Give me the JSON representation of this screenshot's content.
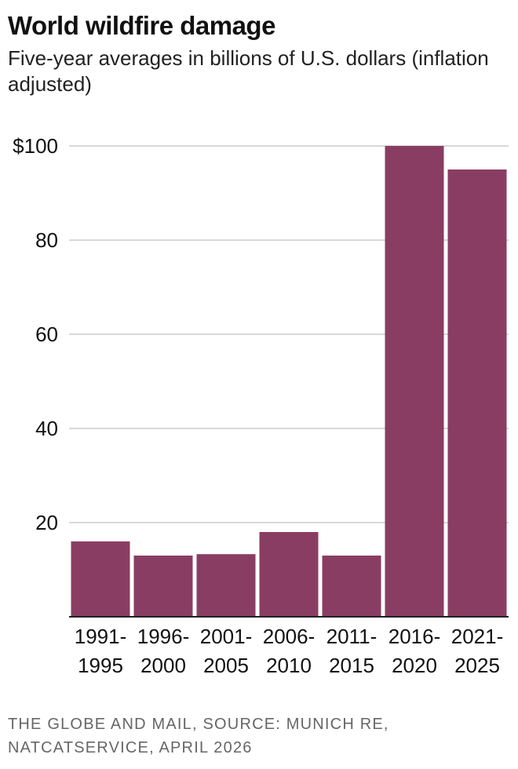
{
  "title": "World wildfire damage",
  "subtitle": "Five-year averages in billions of U.S. dollars (inflation adjusted)",
  "source": "THE GLOBE AND MAIL, SOURCE: MUNICH RE, NATCATSERVICE, APRIL 2026",
  "colors": {
    "bar": "#8a3d62",
    "grid": "#cccccc",
    "axis": "#222222",
    "tick_text": "#111111"
  },
  "chart_data": {
    "type": "bar",
    "title": "World wildfire damage",
    "subtitle": "Five-year averages in billions of U.S. dollars (inflation adjusted)",
    "xlabel": "",
    "ylabel": "",
    "ylim": [
      0,
      100
    ],
    "yticks": [
      20,
      40,
      60,
      80,
      100
    ],
    "ytick_labels": [
      "20",
      "40",
      "60",
      "80",
      "$100"
    ],
    "grid": true,
    "categories": [
      [
        "1991-",
        "1995"
      ],
      [
        "1996-",
        "2000"
      ],
      [
        "2001-",
        "2005"
      ],
      [
        "2006-",
        "2010"
      ],
      [
        "2011-",
        "2015"
      ],
      [
        "2016-",
        "2020"
      ],
      [
        "2021-",
        "2025"
      ]
    ],
    "values": [
      16,
      13,
      13.3,
      18,
      13,
      100,
      95
    ]
  }
}
